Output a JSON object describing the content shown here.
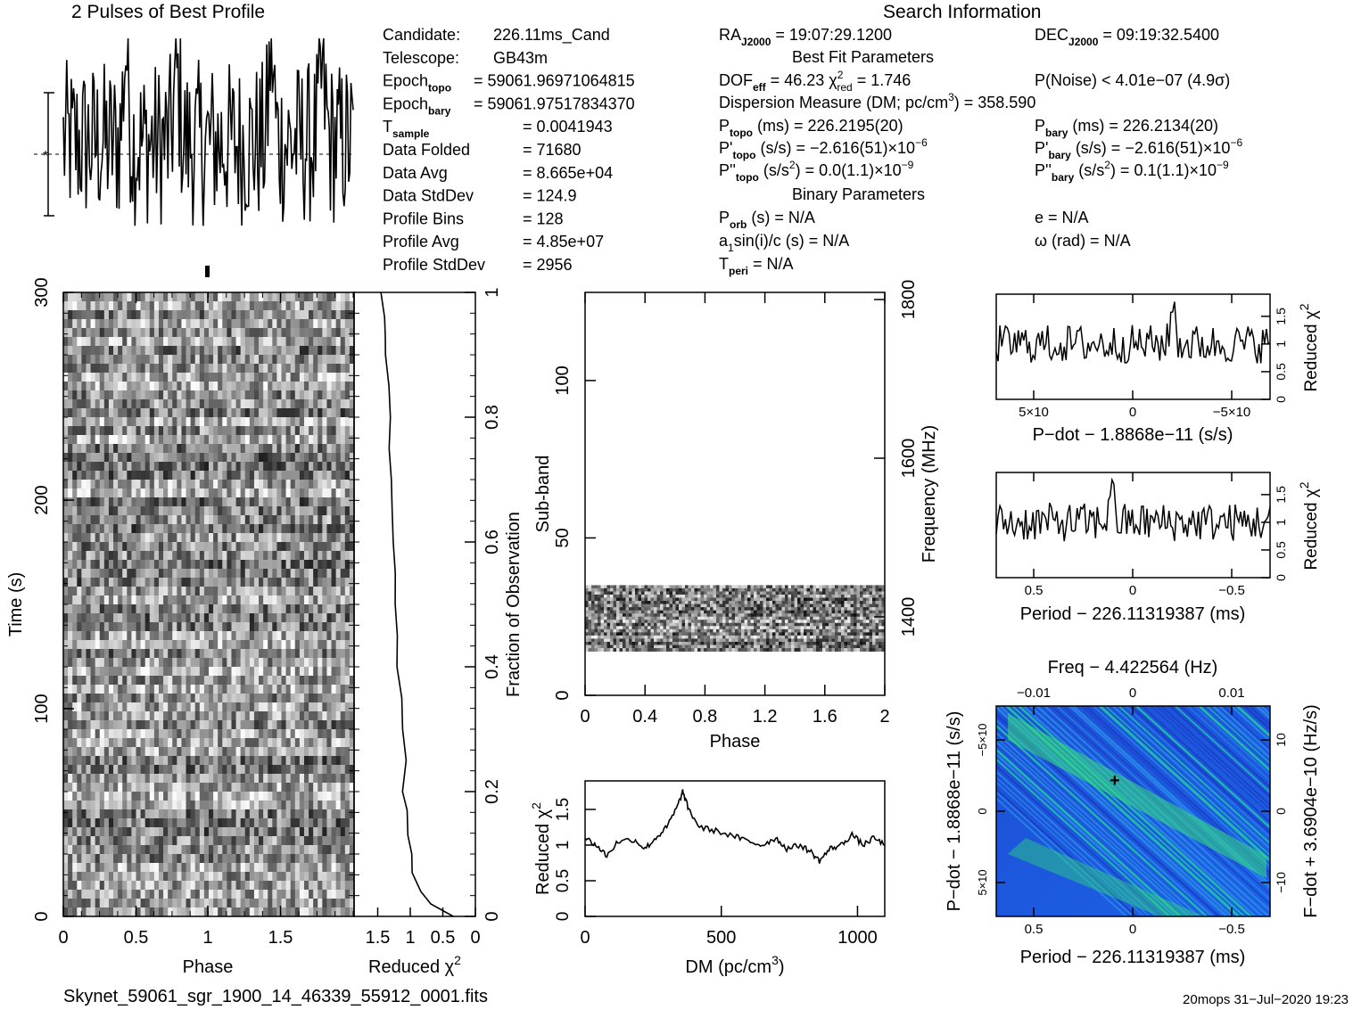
{
  "profile": {
    "title": "2 Pulses of Best Profile"
  },
  "info": {
    "heading": "Search Information",
    "left": [
      {
        "k": "Candidate:",
        "v": "226.11ms_Cand"
      },
      {
        "k": "Telescope:",
        "v": "GB43m"
      },
      {
        "k": "Epoch",
        "sub": "topo",
        "v": "= 59061.96971064815"
      },
      {
        "k": "Epoch",
        "sub": "bary",
        "v": "= 59061.97517834370"
      },
      {
        "k": "T",
        "sub": "sample",
        "v": "=   0.0041943"
      },
      {
        "k": "Data Folded",
        "v": "=   71680"
      },
      {
        "k": "Data Avg",
        "v": "=   8.665e+04"
      },
      {
        "k": "Data StdDev",
        "v": "=   124.9"
      },
      {
        "k": "Profile Bins",
        "v": "=   128"
      },
      {
        "k": "Profile Avg",
        "v": "=   4.85e+07"
      },
      {
        "k": "Profile StdDev",
        "v": "=   2956"
      }
    ],
    "ra": "19:07:29.1200",
    "dec": "09:19:32.5400",
    "best_fit_heading": "Best Fit Parameters",
    "dof_eff": "46.23",
    "chi2_red": "1.746",
    "p_noise": "P(Noise) < 4.01e−07   (4.9σ)",
    "dm_line": "Dispersion Measure (DM; pc/cm",
    "dm_value": ") = 358.590",
    "p_topo": "226.2195(20)",
    "p_bary": "226.2134(20)",
    "pd_topo": "−2.616(51)×10",
    "pd_bary": "−2.616(51)×10",
    "pd_exp": "−6",
    "pdd_topo": "0.0(1.1)×10",
    "pdd_bary": "0.1(1.1)×10",
    "pdd_exp": "−9",
    "binary_heading": "Binary Parameters",
    "porb": "= N/A",
    "asini": "= N/A",
    "tperi": "= N/A",
    "ecc": "e = N/A",
    "omega": "ω (rad) = N/A"
  },
  "footer": {
    "filename": "Skynet_59061_sgr_1900_14_46339_55912_0001.fits",
    "stamp": "20mops 31−Jul−2020 19:23"
  },
  "chart_data": [
    {
      "id": "time-phase",
      "type": "heatmap",
      "xlabel": "Phase",
      "ylabel": "Time (s)",
      "xlim": [
        0,
        2
      ],
      "ylim": [
        0,
        300
      ],
      "xticks": [
        "0",
        "0.5",
        "1",
        "1.5"
      ],
      "yticks": [
        "0",
        "100",
        "200",
        "300"
      ],
      "colormap": "grayscale"
    },
    {
      "id": "time-chi2",
      "type": "line",
      "xlabel": "Reduced χ",
      "ylabel": "Fraction of Observation",
      "xticks": [
        "1.5",
        "1",
        "0.5",
        "0"
      ],
      "yticks": [
        "0",
        "0.2",
        "0.4",
        "0.6",
        "0.8",
        "1"
      ],
      "x_reversed": true,
      "points": [
        [
          0.34,
          0.0
        ],
        [
          0.7,
          0.02
        ],
        [
          0.85,
          0.04
        ],
        [
          0.98,
          0.07
        ],
        [
          1.0,
          0.1
        ],
        [
          1.05,
          0.13
        ],
        [
          1.05,
          0.17
        ],
        [
          1.1,
          0.2
        ],
        [
          1.07,
          0.25
        ],
        [
          1.12,
          0.3
        ],
        [
          1.15,
          0.35
        ],
        [
          1.18,
          0.4
        ],
        [
          1.2,
          0.45
        ],
        [
          1.22,
          0.5
        ],
        [
          1.25,
          0.55
        ],
        [
          1.26,
          0.6
        ],
        [
          1.27,
          0.65
        ],
        [
          1.3,
          0.7
        ],
        [
          1.32,
          0.75
        ],
        [
          1.33,
          0.8
        ],
        [
          1.35,
          0.85
        ],
        [
          1.37,
          0.9
        ],
        [
          1.38,
          0.93
        ],
        [
          1.4,
          0.96
        ],
        [
          1.45,
          1.0
        ]
      ]
    },
    {
      "id": "subband-phase",
      "type": "heatmap",
      "xlabel": "Phase",
      "ylabel": "Sub-band",
      "y2label": "Frequency (MHz)",
      "xlim": [
        0,
        2
      ],
      "ylim": [
        0,
        128
      ],
      "xticks": [
        "0",
        "0.4",
        "0.8",
        "1.2",
        "1.6",
        "2"
      ],
      "yticks": [
        "0",
        "50",
        "100"
      ],
      "y2ticks": [
        "1400",
        "1600",
        "1800"
      ],
      "data_band_subbands": [
        14,
        35
      ],
      "colormap": "grayscale"
    },
    {
      "id": "dm-chi2",
      "type": "line",
      "xlabel": "DM (pc/cm",
      "ylabel": "Reduced χ",
      "xlim": [
        0,
        1100
      ],
      "ylim": [
        0,
        1.9
      ],
      "xticks": [
        "0",
        "500",
        "1000"
      ],
      "yticks": [
        "0",
        "0.5",
        "1",
        "1.5"
      ],
      "points": [
        [
          0,
          1.1
        ],
        [
          40,
          1.0
        ],
        [
          80,
          0.85
        ],
        [
          120,
          1.05
        ],
        [
          180,
          1.08
        ],
        [
          220,
          0.95
        ],
        [
          260,
          1.1
        ],
        [
          300,
          1.25
        ],
        [
          340,
          1.55
        ],
        [
          358,
          1.75
        ],
        [
          380,
          1.5
        ],
        [
          420,
          1.25
        ],
        [
          480,
          1.2
        ],
        [
          550,
          1.12
        ],
        [
          600,
          1.05
        ],
        [
          650,
          1.0
        ],
        [
          700,
          1.1
        ],
        [
          740,
          0.95
        ],
        [
          790,
          1.0
        ],
        [
          830,
          0.9
        ],
        [
          860,
          0.78
        ],
        [
          900,
          0.95
        ],
        [
          940,
          1.0
        ],
        [
          980,
          1.15
        ],
        [
          1020,
          1.0
        ],
        [
          1060,
          1.1
        ],
        [
          1100,
          1.0
        ]
      ]
    },
    {
      "id": "pdot-chi2",
      "type": "line",
      "xlabel": "P−dot − 1.8868e−11 (s/s)",
      "ylabel": "Reduced χ",
      "xticks": [
        "5×10",
        "0",
        "−5×10"
      ],
      "yticks": [
        "0",
        "0.5",
        "1",
        "1.5"
      ],
      "peak_pdot": "-2.6e-6",
      "peak_chi2": 1.75
    },
    {
      "id": "period-chi2",
      "type": "line",
      "xlabel": "Period − 226.11319387 (ms)",
      "ylabel": "Reduced χ",
      "xticks": [
        "0.5",
        "0",
        "−0.5"
      ],
      "yticks": [
        "0",
        "0.5",
        "1",
        "1.5"
      ],
      "peak_period": 0.1,
      "peak_chi2": 1.75
    },
    {
      "id": "p-pdot-plane",
      "type": "heatmap",
      "xlabel": "Period − 226.11319387 (ms)",
      "ylabel": "P−dot − 1.8868e−11 (s/s)",
      "x2label": "Freq − 4.422564 (Hz)",
      "y2label": "F−dot + 3.6904e−10 (Hz/s)",
      "xticks": [
        "0.5",
        "0",
        "−0.5"
      ],
      "x2ticks": [
        "−0.01",
        "0",
        "0.01"
      ],
      "yticks": [
        "−5×10",
        "0",
        "5×10"
      ],
      "y2ticks": [
        "10",
        "0",
        "−10"
      ],
      "best_period": 0.1,
      "colormap": "blue-green"
    }
  ]
}
